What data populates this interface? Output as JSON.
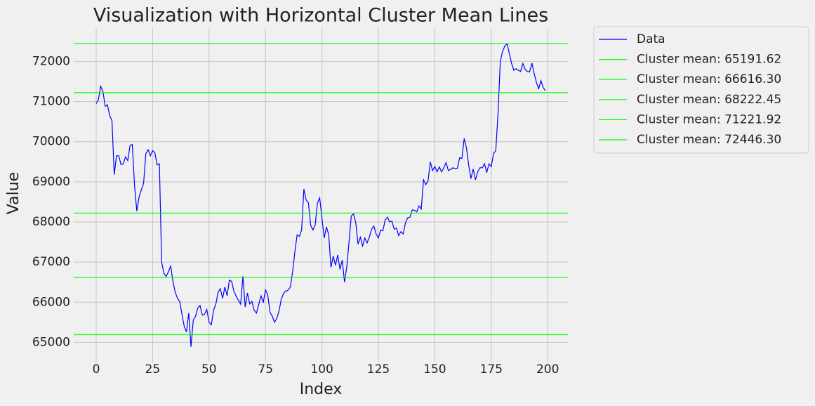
{
  "chart_data": {
    "type": "line",
    "title": "Visualization with Horizontal Cluster Mean Lines",
    "x_label": "Index",
    "y_label": "Value",
    "x": [
      0,
      1,
      2,
      3,
      4,
      5,
      6,
      7,
      8,
      9,
      10,
      11,
      12,
      13,
      14,
      15,
      16,
      17,
      18,
      19,
      20,
      21,
      22,
      23,
      24,
      25,
      26,
      27,
      28,
      29,
      30,
      31,
      32,
      33,
      34,
      35,
      36,
      37,
      38,
      39,
      40,
      41,
      42,
      43,
      44,
      45,
      46,
      47,
      48,
      49,
      50,
      51,
      52,
      53,
      54,
      55,
      56,
      57,
      58,
      59,
      60,
      61,
      62,
      63,
      64,
      65,
      66,
      67,
      68,
      69,
      70,
      71,
      72,
      73,
      74,
      75,
      76,
      77,
      78,
      79,
      80,
      81,
      82,
      83,
      84,
      85,
      86,
      87,
      88,
      89,
      90,
      91,
      92,
      93,
      94,
      95,
      96,
      97,
      98,
      99,
      100,
      101,
      102,
      103,
      104,
      105,
      106,
      107,
      108,
      109,
      110,
      111,
      112,
      113,
      114,
      115,
      116,
      117,
      118,
      119,
      120,
      121,
      122,
      123,
      124,
      125,
      126,
      127,
      128,
      129,
      130,
      131,
      132,
      133,
      134,
      135,
      136,
      137,
      138,
      139,
      140,
      141,
      142,
      143,
      144,
      145,
      146,
      147,
      148,
      149,
      150,
      151,
      152,
      153,
      154,
      155,
      156,
      157,
      158,
      159,
      160,
      161,
      162,
      163,
      164,
      165,
      166,
      167,
      168,
      169,
      170,
      171,
      172,
      173,
      174,
      175,
      176,
      177,
      178,
      179,
      180,
      181,
      182,
      183,
      184,
      185,
      186,
      187,
      188,
      189,
      190,
      191,
      192,
      193,
      194,
      195,
      196,
      197,
      198,
      199
    ],
    "series": [
      {
        "name": "Data",
        "color": "#0000ff",
        "values": [
          70950,
          71050,
          71380,
          71250,
          70880,
          70920,
          70650,
          70520,
          69180,
          69650,
          69650,
          69430,
          69450,
          69620,
          69530,
          69900,
          69930,
          68900,
          68270,
          68620,
          68800,
          68960,
          69700,
          69800,
          69650,
          69780,
          69720,
          69420,
          69450,
          67000,
          66720,
          66640,
          66760,
          66900,
          66520,
          66250,
          66100,
          66020,
          65700,
          65400,
          65260,
          65730,
          64890,
          65550,
          65650,
          65850,
          65920,
          65680,
          65700,
          65820,
          65500,
          65440,
          65800,
          65950,
          66250,
          66340,
          66100,
          66380,
          66160,
          66550,
          66520,
          66280,
          66150,
          66050,
          65950,
          66650,
          65880,
          66230,
          65960,
          66020,
          65800,
          65730,
          65940,
          66160,
          65990,
          66310,
          66180,
          65750,
          65650,
          65500,
          65600,
          65780,
          66080,
          66220,
          66280,
          66300,
          66380,
          66750,
          67250,
          67680,
          67640,
          67800,
          68820,
          68550,
          68480,
          67920,
          67800,
          67920,
          68470,
          68600,
          68100,
          67600,
          67880,
          67680,
          66870,
          67150,
          66920,
          67180,
          66820,
          67050,
          66500,
          66880,
          67500,
          68150,
          68200,
          67980,
          67450,
          67620,
          67400,
          67600,
          67480,
          67620,
          67820,
          67900,
          67700,
          67600,
          67800,
          67780,
          68050,
          68120,
          68000,
          68020,
          67820,
          67850,
          67660,
          67760,
          67700,
          67980,
          68100,
          68120,
          68300,
          68290,
          68250,
          68400,
          68320,
          69050,
          68930,
          69020,
          69500,
          69280,
          69380,
          69250,
          69370,
          69250,
          69350,
          69480,
          69280,
          69310,
          69350,
          69330,
          69340,
          69600,
          69580,
          70080,
          69850,
          69420,
          69080,
          69320,
          69050,
          69250,
          69350,
          69350,
          69450,
          69230,
          69450,
          69380,
          69700,
          69780,
          70700,
          72000,
          72250,
          72380,
          72440,
          72200,
          71950,
          71780,
          71820,
          71780,
          71750,
          71950,
          71800,
          71750,
          71740,
          71960,
          71700,
          71480,
          71320,
          71520,
          71350,
          71270
        ]
      }
    ],
    "hlines": [
      {
        "name": "Cluster mean: 65191.62",
        "value": 65191.62,
        "color": "#00ff00"
      },
      {
        "name": "Cluster mean: 66616.30",
        "value": 66616.3,
        "color": "#00ff00"
      },
      {
        "name": "Cluster mean: 68222.45",
        "value": 68222.45,
        "color": "#00ff00"
      },
      {
        "name": "Cluster mean: 71221.92",
        "value": 71221.92,
        "color": "#00ff00"
      },
      {
        "name": "Cluster mean: 72446.30",
        "value": 72446.3,
        "color": "#00ff00"
      }
    ],
    "xlim": [
      -9.95,
      208.95
    ],
    "ylim": [
      64500,
      72830
    ],
    "xticks": [
      0,
      25,
      50,
      75,
      100,
      125,
      150,
      175,
      200
    ],
    "yticks": [
      65000,
      66000,
      67000,
      68000,
      69000,
      70000,
      71000,
      72000
    ],
    "grid": true,
    "legend": "outside upper right"
  }
}
